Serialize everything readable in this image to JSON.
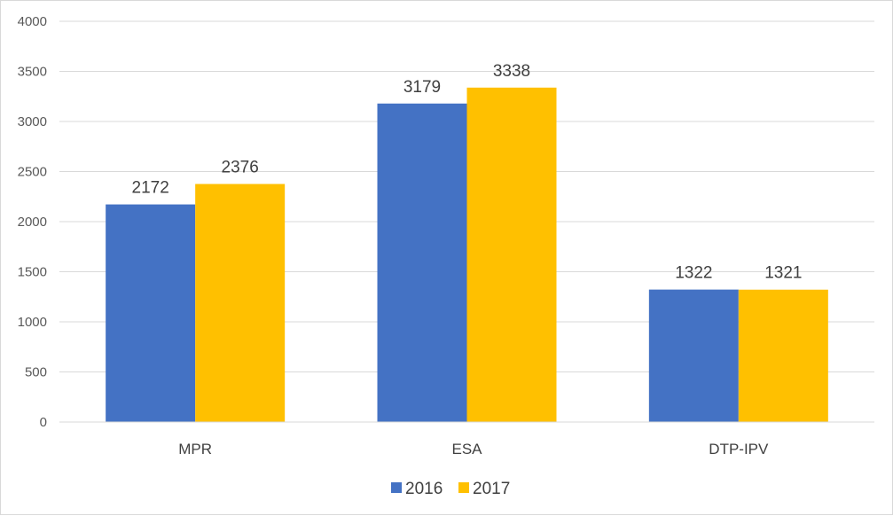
{
  "chart_data": {
    "type": "bar",
    "categories": [
      "MPR",
      "ESA",
      "DTP-IPV"
    ],
    "series": [
      {
        "name": "2016",
        "values": [
          2172,
          3179,
          1322
        ],
        "color": "#4472C4"
      },
      {
        "name": "2017",
        "values": [
          2376,
          3338,
          1321
        ],
        "color": "#FFC000"
      }
    ],
    "title": "",
    "xlabel": "",
    "ylabel": "",
    "ylim": [
      0,
      4000
    ],
    "yticks": [
      0,
      500,
      1000,
      1500,
      2000,
      2500,
      3000,
      3500,
      4000
    ],
    "grid": true,
    "legend": "bottom",
    "data_labels": true
  }
}
